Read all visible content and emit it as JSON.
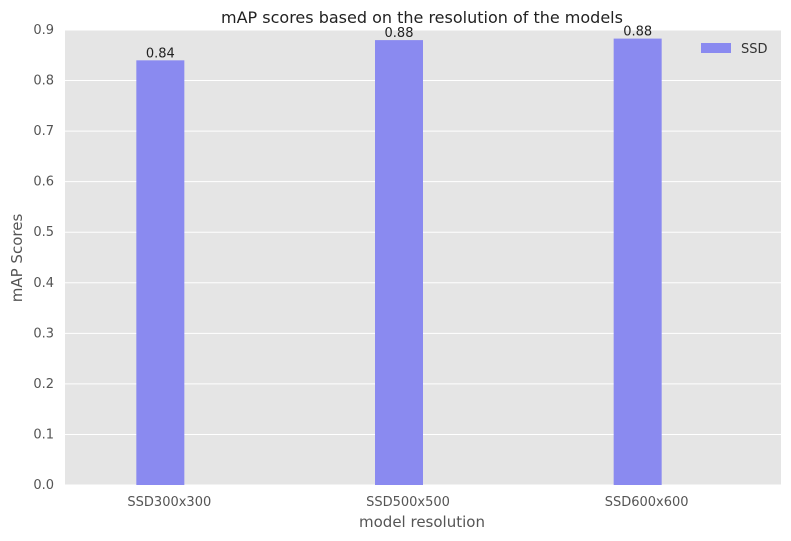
{
  "chart_data": {
    "type": "bar",
    "title": "mAP scores based on the resolution of the models",
    "xlabel": "model resolution",
    "ylabel": "mAP Scores",
    "categories": [
      "SSD300x300",
      "SSD500x500",
      "SSD600x600"
    ],
    "series": [
      {
        "name": "SSD",
        "values": [
          0.84,
          0.88,
          0.883
        ],
        "labels": [
          "0.84",
          "0.88",
          "0.88"
        ],
        "color": "#8a8af0"
      }
    ],
    "ylim": [
      0,
      0.9
    ],
    "yticks": [
      "0.0",
      "0.1",
      "0.2",
      "0.3",
      "0.4",
      "0.5",
      "0.6",
      "0.7",
      "0.8",
      "0.9"
    ],
    "grid": true,
    "background": "#e5e5e5",
    "legend_position": "top-right"
  }
}
